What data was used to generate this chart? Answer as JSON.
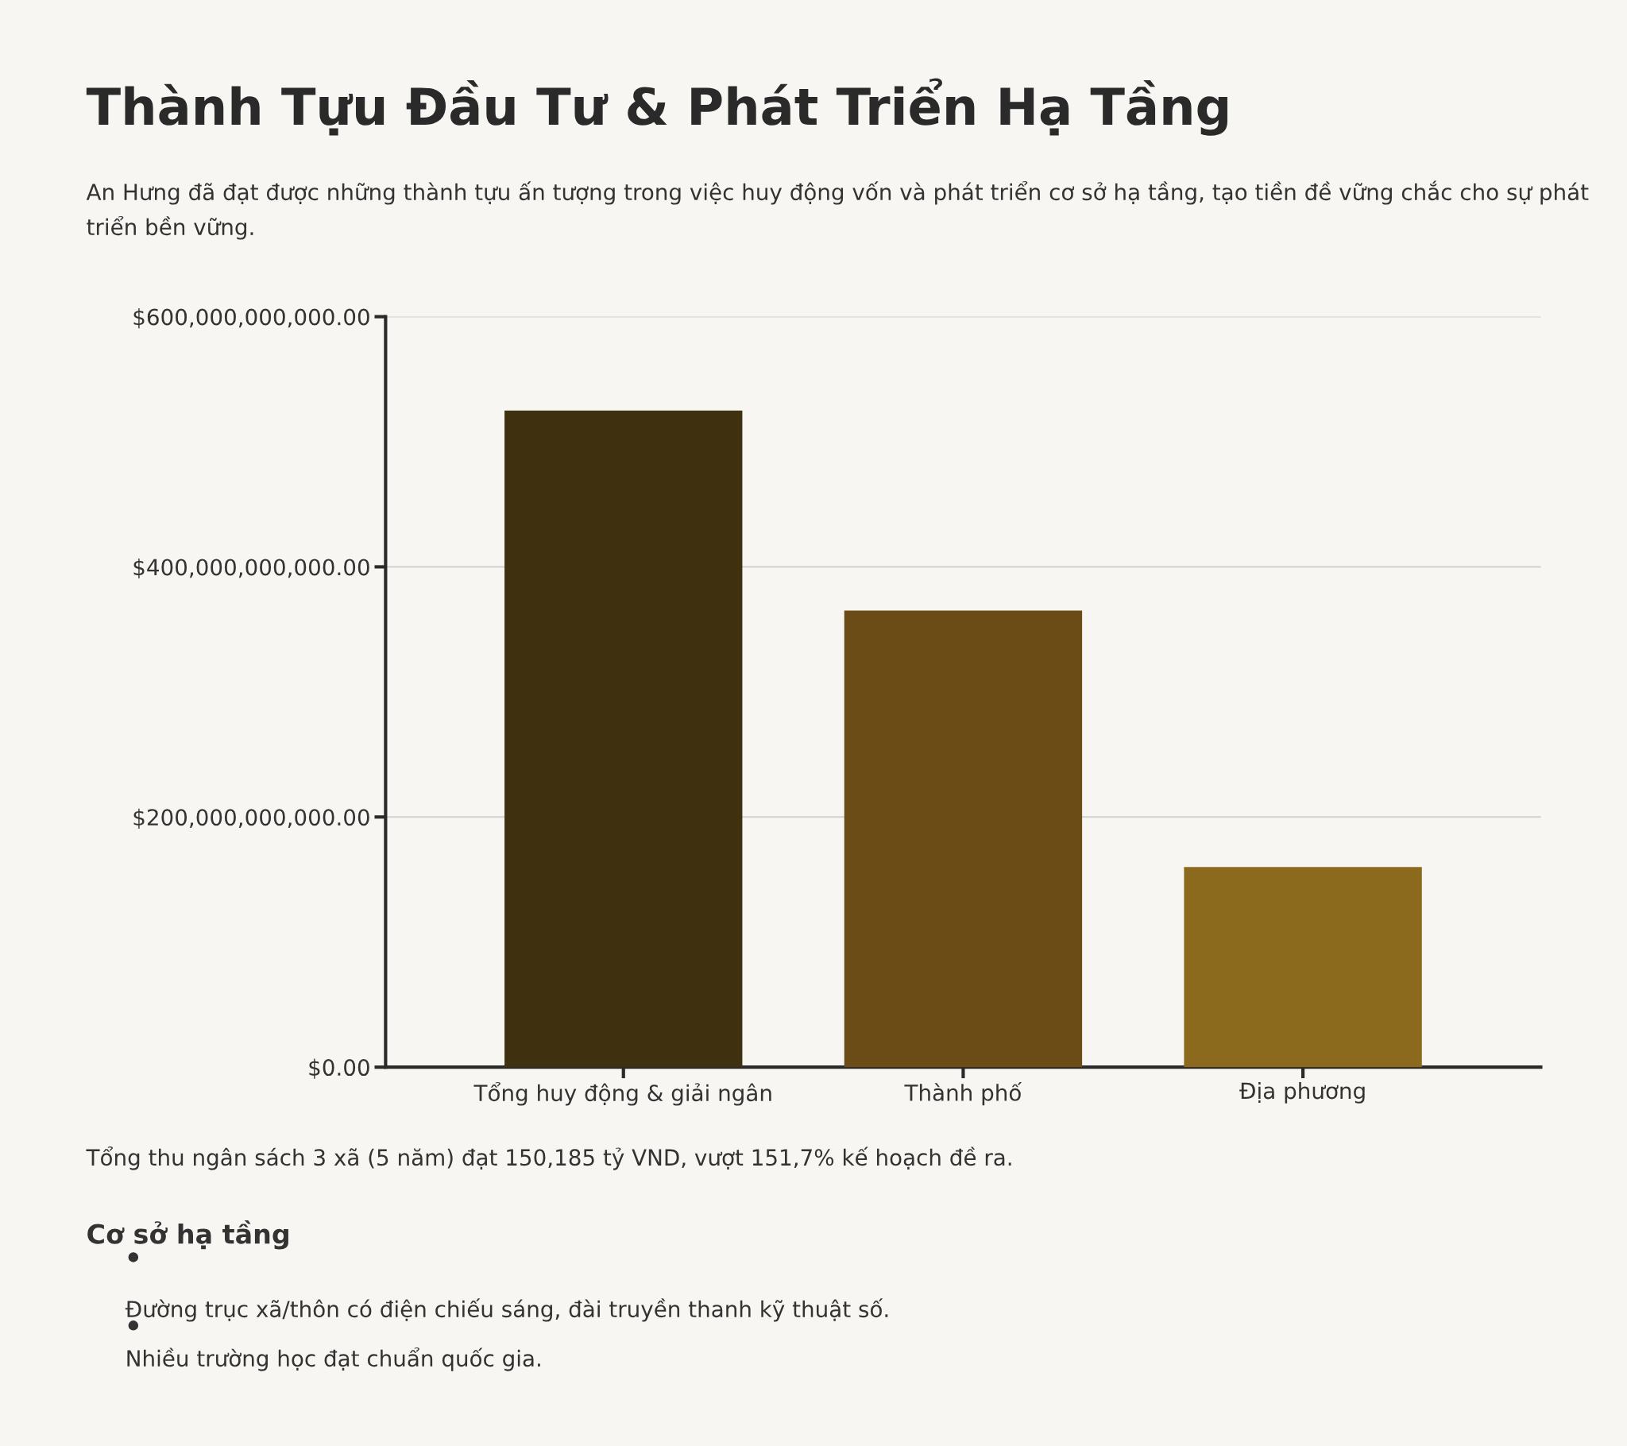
{
  "chart_data": {
    "type": "bar",
    "title": "Thành Tựu Đầu Tư & Phát Triển Hạ Tầng",
    "subtitle": "An Hưng đã đạt được những thành tựu ấn tượng trong việc huy động vốn và phát triển cơ sở hạ tầng, tạo tiền đề vững chắc cho sự phát triển bền vững.",
    "categories": [
      "Tổng huy động & giải ngân",
      "Thành phố",
      "Địa phương"
    ],
    "values": [
      525000000000,
      365000000000,
      160000000000
    ],
    "colors": [
      "#3f3010",
      "#6b4c16",
      "#8b6a1e"
    ],
    "ylim": [
      0,
      600000000000
    ],
    "yticks": [
      {
        "value": 0,
        "label": "$0.00"
      },
      {
        "value": 200000000000,
        "label": "$200,000,000,000.00"
      },
      {
        "value": 400000000000,
        "label": "$400,000,000,000.00"
      },
      {
        "value": 600000000000,
        "label": "$600,000,000,000.00"
      }
    ],
    "grid": "y",
    "annotations": [
      "Tổng thu ngân sách 3 xã (5 năm) đạt 150,185 tỷ VND, vượt 151,7% kế hoạch đề ra.",
      "Cơ sở hạ tầng",
      "Đường trục xã/thôn có điện chiếu sáng, đài truyền thanh kỹ thuật số.",
      "Nhiều trường học đạt chuẩn quốc gia."
    ]
  }
}
